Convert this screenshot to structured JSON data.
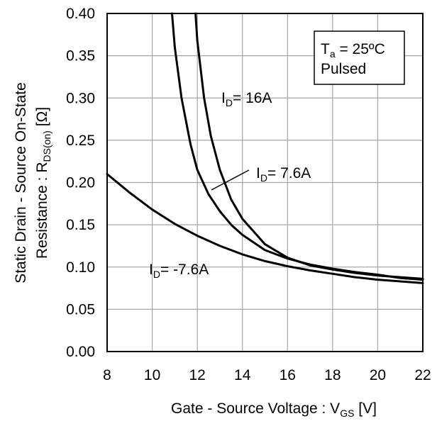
{
  "chart_data": {
    "type": "line",
    "xlabel": {
      "main": "Gate - Source Voltage : V",
      "sub": "GS",
      "unit": " [V]"
    },
    "ylabel": {
      "line1": "Static Drain - Source On-State",
      "line2_main": "Resistance : R",
      "line2_sub": "DS(on)",
      "line2_unit": " [Ω]"
    },
    "xlim": [
      8,
      22
    ],
    "ylim": [
      0,
      0.4
    ],
    "xticks": [
      "8",
      "10",
      "12",
      "14",
      "16",
      "18",
      "20",
      "22"
    ],
    "yticks": [
      "0.00",
      "0.05",
      "0.10",
      "0.15",
      "0.20",
      "0.25",
      "0.30",
      "0.35",
      "0.40"
    ],
    "grid": true,
    "line_color": "#000000",
    "grid_color": "#a6a6a6",
    "legend_box": {
      "line1_main": "T",
      "line1_sub": "a",
      "line1_rest": " = 25ºC",
      "line2": "Pulsed"
    },
    "series": [
      {
        "label_main": "I",
        "label_sub": "D",
        "label_rest": "= 16A",
        "x": [
          11.92,
          12.0,
          12.3,
          12.6,
          13.0,
          13.5,
          14.0,
          15.0,
          16.0,
          17.0,
          18.0,
          19.0,
          20.0,
          21.0,
          22.0
        ],
        "y": [
          0.4,
          0.368,
          0.3,
          0.255,
          0.215,
          0.18,
          0.157,
          0.127,
          0.111,
          0.102,
          0.097,
          0.093,
          0.09,
          0.088,
          0.086
        ]
      },
      {
        "label_main": "I",
        "label_sub": "D",
        "label_rest": "= 7.6A",
        "x": [
          10.88,
          11.0,
          11.3,
          11.7,
          12.0,
          12.5,
          13.0,
          13.5,
          14.0,
          15.0,
          16.0,
          17.0,
          18.0,
          19.0,
          20.0,
          21.0,
          22.0
        ],
        "y": [
          0.4,
          0.36,
          0.3,
          0.245,
          0.215,
          0.186,
          0.166,
          0.15,
          0.138,
          0.12,
          0.11,
          0.103,
          0.098,
          0.094,
          0.091,
          0.087,
          0.085
        ]
      },
      {
        "label_main": "I",
        "label_sub": "D",
        "label_rest": "= -7.6A",
        "x": [
          8.0,
          9.0,
          10.0,
          11.0,
          12.0,
          13.0,
          14.0,
          15.0,
          16.0,
          17.0,
          18.0,
          19.0,
          20.0,
          21.0,
          22.0
        ],
        "y": [
          0.21,
          0.188,
          0.168,
          0.151,
          0.137,
          0.125,
          0.115,
          0.107,
          0.101,
          0.096,
          0.092,
          0.088,
          0.085,
          0.083,
          0.081
        ]
      }
    ]
  }
}
